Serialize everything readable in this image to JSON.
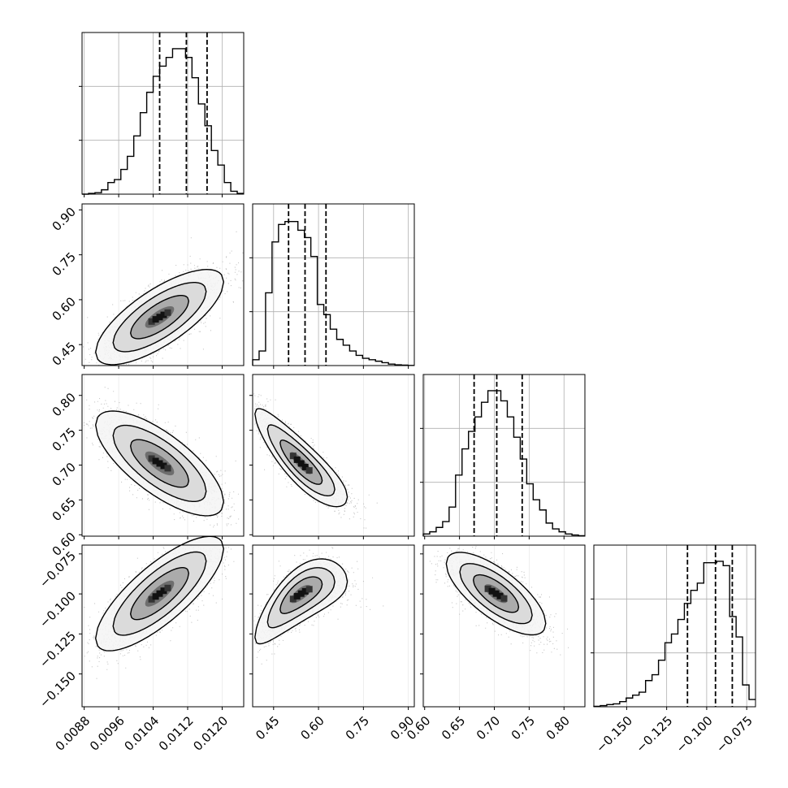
{
  "chart_data": {
    "type": "corner",
    "grid": true,
    "parameters": [
      {
        "range": [
          0.00875,
          0.0125
        ],
        "ticks": [
          "0.0088",
          "0.0096",
          "0.0104",
          "0.0112",
          "0.0120"
        ],
        "tick_values": [
          0.0088,
          0.0096,
          0.0104,
          0.0112,
          0.012
        ],
        "quantiles": [
          0.01055,
          0.01117,
          0.01165
        ]
      },
      {
        "range": [
          0.38,
          0.92
        ],
        "ticks": [
          "0.45",
          "0.60",
          "0.75",
          "0.90"
        ],
        "tick_values": [
          0.45,
          0.6,
          0.75,
          0.9
        ],
        "quantiles": [
          0.5,
          0.555,
          0.625
        ]
      },
      {
        "range": [
          0.598,
          0.83
        ],
        "ticks": [
          "0.60",
          "0.65",
          "0.70",
          "0.75",
          "0.80"
        ],
        "tick_values": [
          0.6,
          0.65,
          0.7,
          0.75,
          0.8
        ],
        "quantiles": [
          0.671,
          0.7035,
          0.74
        ]
      },
      {
        "range": [
          -0.1705,
          -0.0695
        ],
        "ticks": [
          "−0.150",
          "−0.125",
          "−0.100",
          "−0.075"
        ],
        "tick_values": [
          -0.15,
          -0.125,
          -0.1,
          -0.075
        ],
        "quantiles": [
          -0.112,
          -0.0945,
          -0.084
        ]
      }
    ],
    "histograms": [
      [
        0,
        0.005,
        0.01,
        0.03,
        0.08,
        0.1,
        0.17,
        0.26,
        0.4,
        0.56,
        0.7,
        0.81,
        0.88,
        0.94,
        1.0,
        1.0,
        0.94,
        0.8,
        0.62,
        0.47,
        0.3,
        0.2,
        0.08,
        0.02,
        0.005
      ],
      [
        0.04,
        0.1,
        0.5,
        0.85,
        0.97,
        0.99,
        0.99,
        0.93,
        0.88,
        0.75,
        0.42,
        0.35,
        0.25,
        0.18,
        0.14,
        0.1,
        0.07,
        0.05,
        0.04,
        0.03,
        0.02,
        0.01,
        0.005,
        0.003,
        0.001
      ],
      [
        0.015,
        0.03,
        0.06,
        0.1,
        0.2,
        0.42,
        0.6,
        0.72,
        0.82,
        0.92,
        1.0,
        1.0,
        0.93,
        0.82,
        0.68,
        0.53,
        0.36,
        0.25,
        0.18,
        0.09,
        0.05,
        0.03,
        0.015,
        0.008,
        0.003
      ],
      [
        0.003,
        0.008,
        0.015,
        0.02,
        0.035,
        0.06,
        0.08,
        0.1,
        0.18,
        0.22,
        0.32,
        0.44,
        0.5,
        0.6,
        0.71,
        0.8,
        0.85,
        0.99,
        0.99,
        1.0,
        0.97,
        0.62,
        0.48,
        0.15,
        0.05
      ]
    ]
  }
}
